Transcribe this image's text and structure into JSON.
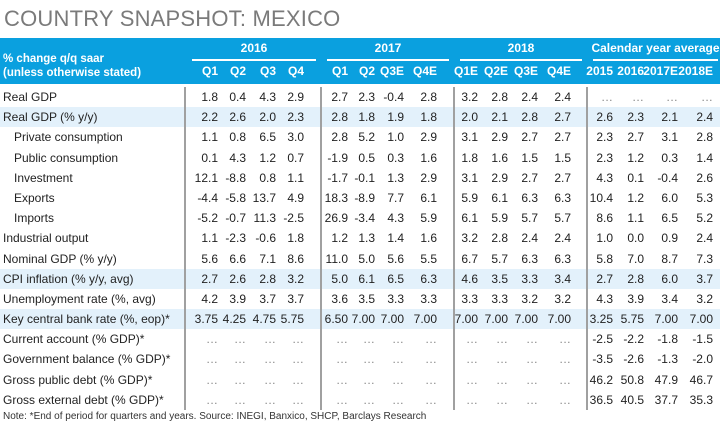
{
  "title": "COUNTRY SNAPSHOT: MEXICO",
  "header": {
    "stub_line1": "% change q/q saar",
    "stub_line2": "(unless otherwise stated)",
    "groups": [
      "2016",
      "2017",
      "2018",
      "Calendar year average"
    ],
    "columns": [
      "Q1",
      "Q2",
      "Q3",
      "Q4",
      "Q1",
      "Q2",
      "Q3E",
      "Q4E",
      "Q1E",
      "Q2E",
      "Q3E",
      "Q4E",
      "2015",
      "2016",
      "2017E",
      "2018E"
    ]
  },
  "rows": [
    {
      "label": "Real GDP",
      "indent": false,
      "highlight": false,
      "values": [
        "1.8",
        "0.4",
        "4.3",
        "2.9",
        "2.7",
        "2.3",
        "-0.4",
        "2.8",
        "3.2",
        "2.8",
        "2.4",
        "2.4",
        "...",
        "...",
        "...",
        "..."
      ]
    },
    {
      "label": "Real GDP (% y/y)",
      "indent": false,
      "highlight": true,
      "values": [
        "2.2",
        "2.6",
        "2.0",
        "2.3",
        "2.8",
        "1.8",
        "1.9",
        "1.8",
        "2.0",
        "2.1",
        "2.8",
        "2.7",
        "2.6",
        "2.3",
        "2.1",
        "2.4"
      ]
    },
    {
      "label": "Private consumption",
      "indent": true,
      "highlight": false,
      "values": [
        "1.1",
        "0.8",
        "6.5",
        "3.0",
        "2.8",
        "5.2",
        "1.0",
        "2.9",
        "3.1",
        "2.9",
        "2.7",
        "2.7",
        "2.3",
        "2.7",
        "3.1",
        "2.8"
      ]
    },
    {
      "label": "Public consumption",
      "indent": true,
      "highlight": false,
      "values": [
        "0.1",
        "4.3",
        "1.2",
        "0.7",
        "-1.9",
        "0.5",
        "0.3",
        "1.6",
        "1.8",
        "1.6",
        "1.5",
        "1.5",
        "2.3",
        "1.2",
        "0.3",
        "1.4"
      ]
    },
    {
      "label": "Investment",
      "indent": true,
      "highlight": false,
      "values": [
        "12.1",
        "-8.8",
        "0.8",
        "1.1",
        "-1.7",
        "-0.1",
        "1.3",
        "2.9",
        "3.1",
        "2.9",
        "2.7",
        "2.7",
        "4.3",
        "0.1",
        "-0.4",
        "2.6"
      ]
    },
    {
      "label": "Exports",
      "indent": true,
      "highlight": false,
      "values": [
        "-4.4",
        "-5.8",
        "13.7",
        "4.9",
        "18.3",
        "-8.9",
        "7.7",
        "6.1",
        "5.9",
        "6.1",
        "6.3",
        "6.3",
        "10.4",
        "1.2",
        "6.0",
        "5.3"
      ]
    },
    {
      "label": "Imports",
      "indent": true,
      "highlight": false,
      "values": [
        "-5.2",
        "-0.7",
        "11.3",
        "-2.5",
        "26.9",
        "-3.4",
        "4.3",
        "5.9",
        "6.1",
        "5.9",
        "5.7",
        "5.7",
        "8.6",
        "1.1",
        "6.5",
        "5.2"
      ]
    },
    {
      "label": "Industrial output",
      "indent": false,
      "highlight": false,
      "values": [
        "1.1",
        "-2.3",
        "-0.6",
        "1.8",
        "1.2",
        "1.3",
        "1.4",
        "1.6",
        "3.2",
        "2.8",
        "2.4",
        "2.4",
        "1.0",
        "0.0",
        "0.9",
        "2.4"
      ]
    },
    {
      "label": "Nominal GDP (% y/y)",
      "indent": false,
      "highlight": false,
      "values": [
        "5.6",
        "6.6",
        "7.1",
        "8.6",
        "11.0",
        "5.0",
        "5.6",
        "5.5",
        "6.7",
        "5.7",
        "6.3",
        "6.3",
        "5.8",
        "7.0",
        "8.7",
        "7.3"
      ]
    },
    {
      "label": "CPI inflation (% y/y, avg)",
      "indent": false,
      "highlight": true,
      "values": [
        "2.7",
        "2.6",
        "2.8",
        "3.2",
        "5.0",
        "6.1",
        "6.5",
        "6.3",
        "4.6",
        "3.5",
        "3.3",
        "3.4",
        "2.7",
        "2.8",
        "6.0",
        "3.7"
      ]
    },
    {
      "label": "Unemployment rate (%, avg)",
      "indent": false,
      "highlight": false,
      "values": [
        "4.2",
        "3.9",
        "3.7",
        "3.7",
        "3.6",
        "3.5",
        "3.3",
        "3.3",
        "3.3",
        "3.3",
        "3.2",
        "3.2",
        "4.3",
        "3.9",
        "3.4",
        "3.2"
      ]
    },
    {
      "label": "Key central bank rate (%, eop)*",
      "indent": false,
      "highlight": true,
      "values": [
        "3.75",
        "4.25",
        "4.75",
        "5.75",
        "6.50",
        "7.00",
        "7.00",
        "7.00",
        "7.00",
        "7.00",
        "7.00",
        "7.00",
        "3.25",
        "5.75",
        "7.00",
        "7.00"
      ]
    },
    {
      "label": "Current account (% GDP)*",
      "indent": false,
      "highlight": false,
      "values": [
        "...",
        "...",
        "...",
        "...",
        "...",
        "...",
        "...",
        "...",
        "...",
        "...",
        "...",
        "...",
        "-2.5",
        "-2.2",
        "-1.8",
        "-1.5"
      ]
    },
    {
      "label": "Government balance (% GDP)*",
      "indent": false,
      "highlight": false,
      "values": [
        "...",
        "...",
        "...",
        "...",
        "...",
        "...",
        "...",
        "...",
        "...",
        "...",
        "...",
        "...",
        "-3.5",
        "-2.6",
        "-1.3",
        "-2.0"
      ]
    },
    {
      "label": "Gross public debt (% GDP)*",
      "indent": false,
      "highlight": false,
      "values": [
        "...",
        "...",
        "...",
        "...",
        "...",
        "...",
        "...",
        "...",
        "...",
        "...",
        "...",
        "...",
        "46.2",
        "50.8",
        "47.9",
        "46.7"
      ]
    },
    {
      "label": "Gross external debt (% GDP)*",
      "indent": false,
      "highlight": false,
      "values": [
        "...",
        "...",
        "...",
        "...",
        "...",
        "...",
        "...",
        "...",
        "...",
        "...",
        "...",
        "...",
        "36.5",
        "40.5",
        "37.7",
        "35.3"
      ]
    }
  ],
  "note": "Note: *End of period for quarters and years. Source: INEGI, Banxico, SHCP, Barclays Research",
  "colors": {
    "header_bg": "#0aa0df",
    "highlight_row": "#e3f1fb",
    "title": "#7a7a7a"
  }
}
